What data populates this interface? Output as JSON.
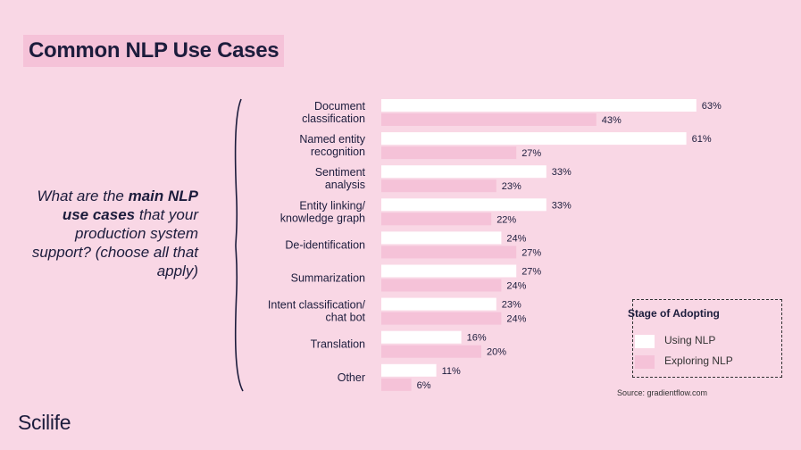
{
  "title": "Common NLP Use Cases",
  "question": {
    "part1": "What are the ",
    "bold": "main NLP use cases",
    "part2": " that your production system support? (choose all that apply)"
  },
  "legend": {
    "title": "Stage of Adopting",
    "items": [
      {
        "label": "Using NLP",
        "color": "#ffffff"
      },
      {
        "label": "Exploring NLP",
        "color": "#f5c2d8"
      }
    ]
  },
  "source": "Source: gradientflow.com",
  "logo": "Scilife",
  "chart_data": {
    "type": "bar",
    "orientation": "horizontal",
    "categories": [
      [
        "Document",
        "classification"
      ],
      [
        "Named entity",
        "recognition"
      ],
      [
        "Sentiment",
        "analysis"
      ],
      [
        "Entity linking/",
        "knowledge graph"
      ],
      [
        "De-identification"
      ],
      [
        "Summarization"
      ],
      [
        "Intent classification/",
        "chat bot"
      ],
      [
        "Translation"
      ],
      [
        "Other"
      ]
    ],
    "series": [
      {
        "name": "Using NLP",
        "color": "#ffffff",
        "values": [
          63,
          61,
          33,
          33,
          24,
          27,
          23,
          16,
          11
        ]
      },
      {
        "name": "Exploring NLP",
        "color": "#f5c2d8",
        "values": [
          43,
          27,
          23,
          22,
          27,
          24,
          24,
          20,
          6
        ]
      }
    ],
    "value_suffix": "%",
    "xlim": [
      0,
      100
    ],
    "grid": false,
    "legend_position": "bottom-right"
  }
}
